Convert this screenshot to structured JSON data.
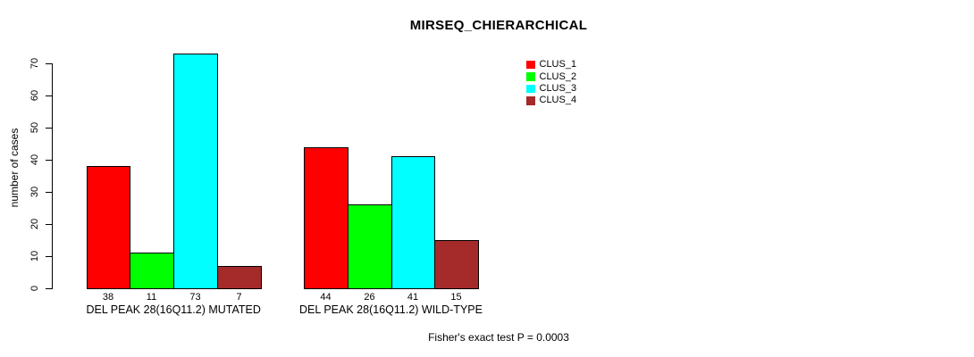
{
  "title": "MIRSEQ_CHIERARCHICAL",
  "footer": "Fisher's exact test P = 0.0003",
  "chart_data": {
    "type": "bar",
    "title": "MIRSEQ_CHIERARCHICAL",
    "xlabel": "",
    "ylabel": "number of cases",
    "ylim": [
      0,
      70
    ],
    "yticks": [
      0,
      10,
      20,
      30,
      40,
      50,
      60,
      70
    ],
    "grid": false,
    "legend_position": "top-right",
    "bar_border_color": "#000000",
    "series": [
      {
        "name": "CLUS_1",
        "color": "#FF0000"
      },
      {
        "name": "CLUS_2",
        "color": "#00FF00"
      },
      {
        "name": "CLUS_3",
        "color": "#00FFFF"
      },
      {
        "name": "CLUS_4",
        "color": "#A52A2A"
      }
    ],
    "groups": [
      {
        "label": "DEL PEAK 28(16Q11.2) MUTATED",
        "values": [
          38,
          11,
          73,
          7
        ]
      },
      {
        "label": "DEL PEAK 28(16Q11.2) WILD-TYPE",
        "values": [
          44,
          26,
          41,
          15
        ]
      }
    ],
    "annotation": "Fisher's exact test P = 0.0003"
  }
}
